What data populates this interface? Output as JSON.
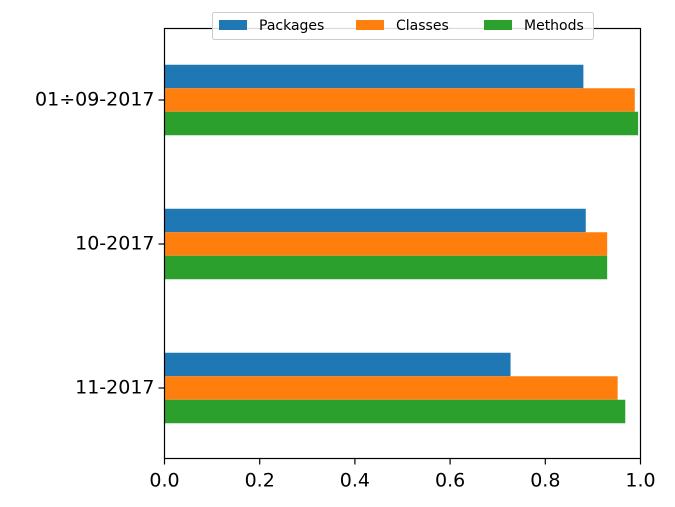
{
  "chart_data": {
    "type": "bar",
    "orientation": "horizontal",
    "categories": [
      "01÷09-2017",
      "10-2017",
      "11-2017"
    ],
    "series": [
      {
        "name": "Packages",
        "color": "#1f77b4",
        "values": [
          0.88,
          0.885,
          0.727
        ]
      },
      {
        "name": "Classes",
        "color": "#ff7f0e",
        "values": [
          0.988,
          0.93,
          0.952
        ]
      },
      {
        "name": "Methods",
        "color": "#2ca02c",
        "values": [
          0.995,
          0.93,
          0.968
        ]
      }
    ],
    "xlim": [
      0,
      1
    ],
    "xticks": [
      "0.0",
      "0.2",
      "0.4",
      "0.6",
      "0.8",
      "1.0"
    ],
    "title": "",
    "xlabel": "",
    "ylabel": "",
    "grid": false,
    "legend": "top-center"
  }
}
